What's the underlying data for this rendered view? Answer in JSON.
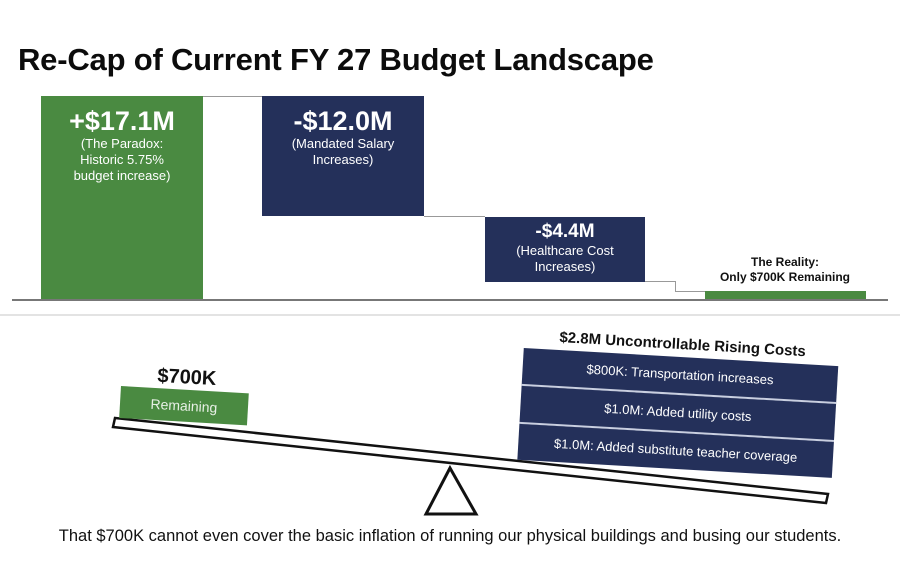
{
  "title": "Re-Cap of Current FY 27 Budget Landscape",
  "waterfall": {
    "increase": {
      "amount": "+$17.1M",
      "lines": [
        "(The Paradox:",
        "Historic 5.75%",
        "budget increase)"
      ]
    },
    "salary": {
      "amount": "-$12.0M",
      "lines": [
        "(Mandated Salary",
        "Increases)"
      ]
    },
    "healthcare": {
      "amount": "-$4.4M",
      "lines": [
        "(Healthcare Cost",
        "Increases)"
      ]
    },
    "reality": {
      "lines": [
        "The Reality:",
        "Only $700K Remaining"
      ]
    }
  },
  "chart_data": {
    "type": "bar",
    "categories": [
      "Historic 5.75% budget increase",
      "Mandated Salary Increases",
      "Healthcare Cost Increases",
      "The Reality: Remaining"
    ],
    "values": [
      17.1,
      -12.0,
      -4.4,
      0.7
    ],
    "units": "$M"
  },
  "seesaw": {
    "left": {
      "amount": "$700K",
      "label": "Remaining"
    },
    "right": {
      "title": "$2.8M Uncontrollable Rising Costs",
      "items": [
        "$800K: Transportation increases",
        "$1.0M: Added utility costs",
        "$1.0M: Added substitute teacher coverage"
      ]
    }
  },
  "footer": "That $700K cannot even cover the basic inflation of running our physical buildings and busing our students.",
  "colors": {
    "green": "#4a8a41",
    "navy": "#24305a"
  }
}
